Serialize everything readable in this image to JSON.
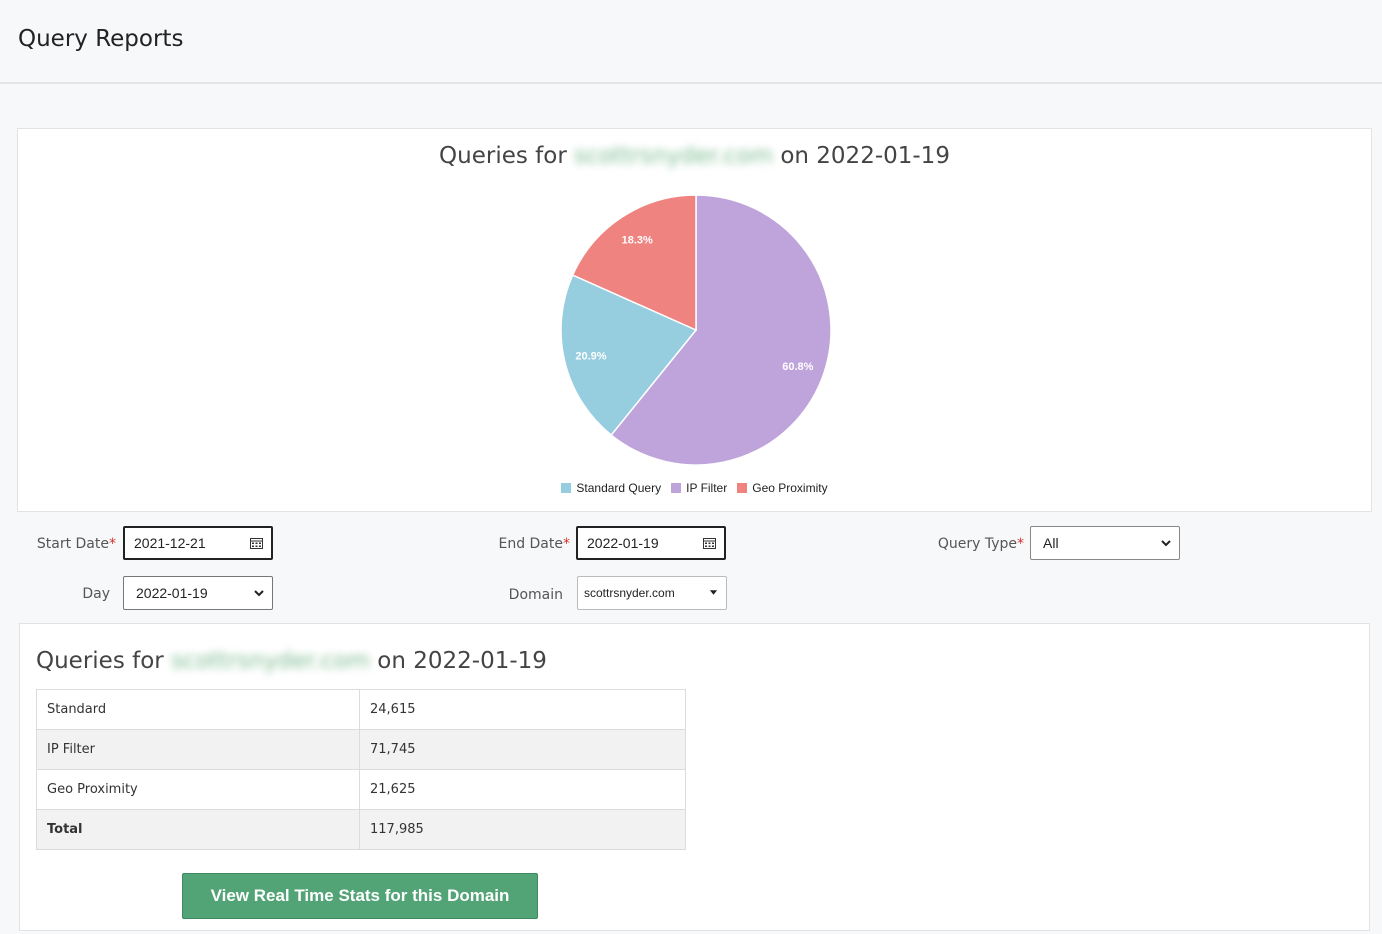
{
  "page": {
    "title": "Query Reports"
  },
  "chart": {
    "title_prefix": "Queries for",
    "domain_blurred": "scottrsnyder.com",
    "title_suffix": "on 2022-01-19"
  },
  "chart_data": {
    "type": "pie",
    "title": "Queries for scottrsnyder.com on 2022-01-19",
    "slices": [
      {
        "name": "IP Filter",
        "value": 71745,
        "percent_label": "60.8%",
        "color": "#bfa3db"
      },
      {
        "name": "Standard Query",
        "value": 24615,
        "percent_label": "20.9%",
        "color": "#96cddf"
      },
      {
        "name": "Geo Proximity",
        "value": 21625,
        "percent_label": "18.3%",
        "color": "#ee837f"
      }
    ],
    "legend": [
      {
        "label": "Standard Query",
        "color": "#96cddf"
      },
      {
        "label": "IP Filter",
        "color": "#bfa3db"
      },
      {
        "label": "Geo Proximity",
        "color": "#ee837f"
      }
    ],
    "legend_position": "bottom"
  },
  "form": {
    "start_date_label": "Start Date",
    "start_date_value": "2021-12-21",
    "end_date_label": "End Date",
    "end_date_value": "2022-01-19",
    "query_type_label": "Query Type",
    "query_type_value": "All",
    "day_label": "Day",
    "day_value": "2022-01-19",
    "domain_label": "Domain",
    "domain_value": "scottrsnyder.com",
    "required_mark": "*"
  },
  "stats": {
    "title_prefix": "Queries for",
    "domain_blurred": "scottrsnyder.com",
    "title_suffix": "on 2022-01-19",
    "rows": [
      {
        "label": "Standard",
        "value": "24,615"
      },
      {
        "label": "IP Filter",
        "value": "71,745"
      },
      {
        "label": "Geo Proximity",
        "value": "21,625"
      },
      {
        "label": "Total",
        "value": "117,985"
      }
    ],
    "button_label": "View Real Time Stats for this Domain"
  }
}
